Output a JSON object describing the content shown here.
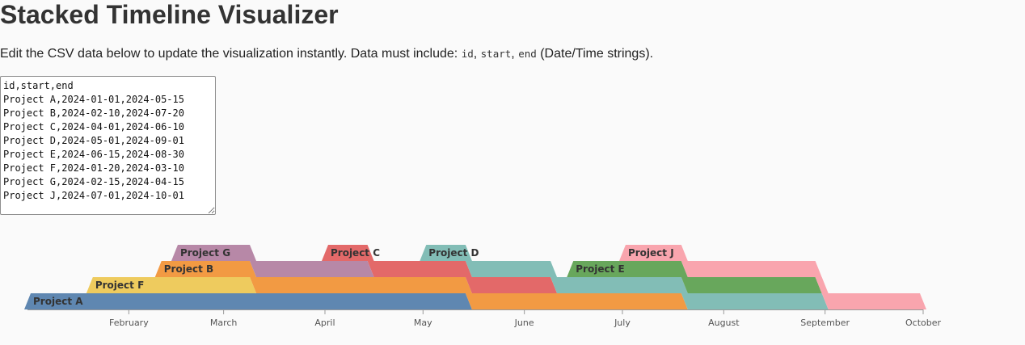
{
  "page": {
    "title": "Stacked Timeline Visualizer",
    "description_prefix": "Edit the CSV data below to update the visualization instantly. Data must include: ",
    "code_id": "id",
    "sep1": ", ",
    "code_start": "start",
    "sep2": ", ",
    "code_end": "end",
    "description_suffix": " (Date/Time strings)."
  },
  "editor": {
    "csv": "id,start,end\nProject A,2024-01-01,2024-05-15\nProject B,2024-02-10,2024-07-20\nProject C,2024-04-01,2024-06-10\nProject D,2024-05-01,2024-09-01\nProject E,2024-06-15,2024-08-30\nProject F,2024-01-20,2024-03-10\nProject G,2024-02-15,2024-04-15\nProject J,2024-07-01,2024-10-01"
  },
  "chart_data": {
    "type": "stacked-timeline",
    "x_domain": [
      "2024-01-01",
      "2024-10-01"
    ],
    "ticks": [
      {
        "date": "2024-02-01",
        "label": "February"
      },
      {
        "date": "2024-03-01",
        "label": "March"
      },
      {
        "date": "2024-04-01",
        "label": "April"
      },
      {
        "date": "2024-05-01",
        "label": "May"
      },
      {
        "date": "2024-06-01",
        "label": "June"
      },
      {
        "date": "2024-07-01",
        "label": "July"
      },
      {
        "date": "2024-08-01",
        "label": "August"
      },
      {
        "date": "2024-09-01",
        "label": "September"
      },
      {
        "date": "2024-10-01",
        "label": "October"
      }
    ],
    "series": [
      {
        "id": "Project A",
        "start": "2024-01-01",
        "end": "2024-05-15",
        "color": "#5f87b1"
      },
      {
        "id": "Project B",
        "start": "2024-02-10",
        "end": "2024-07-20",
        "color": "#f29a43"
      },
      {
        "id": "Project C",
        "start": "2024-04-01",
        "end": "2024-06-10",
        "color": "#e36969"
      },
      {
        "id": "Project D",
        "start": "2024-05-01",
        "end": "2024-09-01",
        "color": "#82bdb6"
      },
      {
        "id": "Project E",
        "start": "2024-06-15",
        "end": "2024-08-30",
        "color": "#68a75c"
      },
      {
        "id": "Project F",
        "start": "2024-01-20",
        "end": "2024-03-10",
        "color": "#eecb5e"
      },
      {
        "id": "Project G",
        "start": "2024-02-15",
        "end": "2024-04-15",
        "color": "#b788a7"
      },
      {
        "id": "Project J",
        "start": "2024-07-01",
        "end": "2024-10-01",
        "color": "#f9a5ae"
      }
    ]
  }
}
